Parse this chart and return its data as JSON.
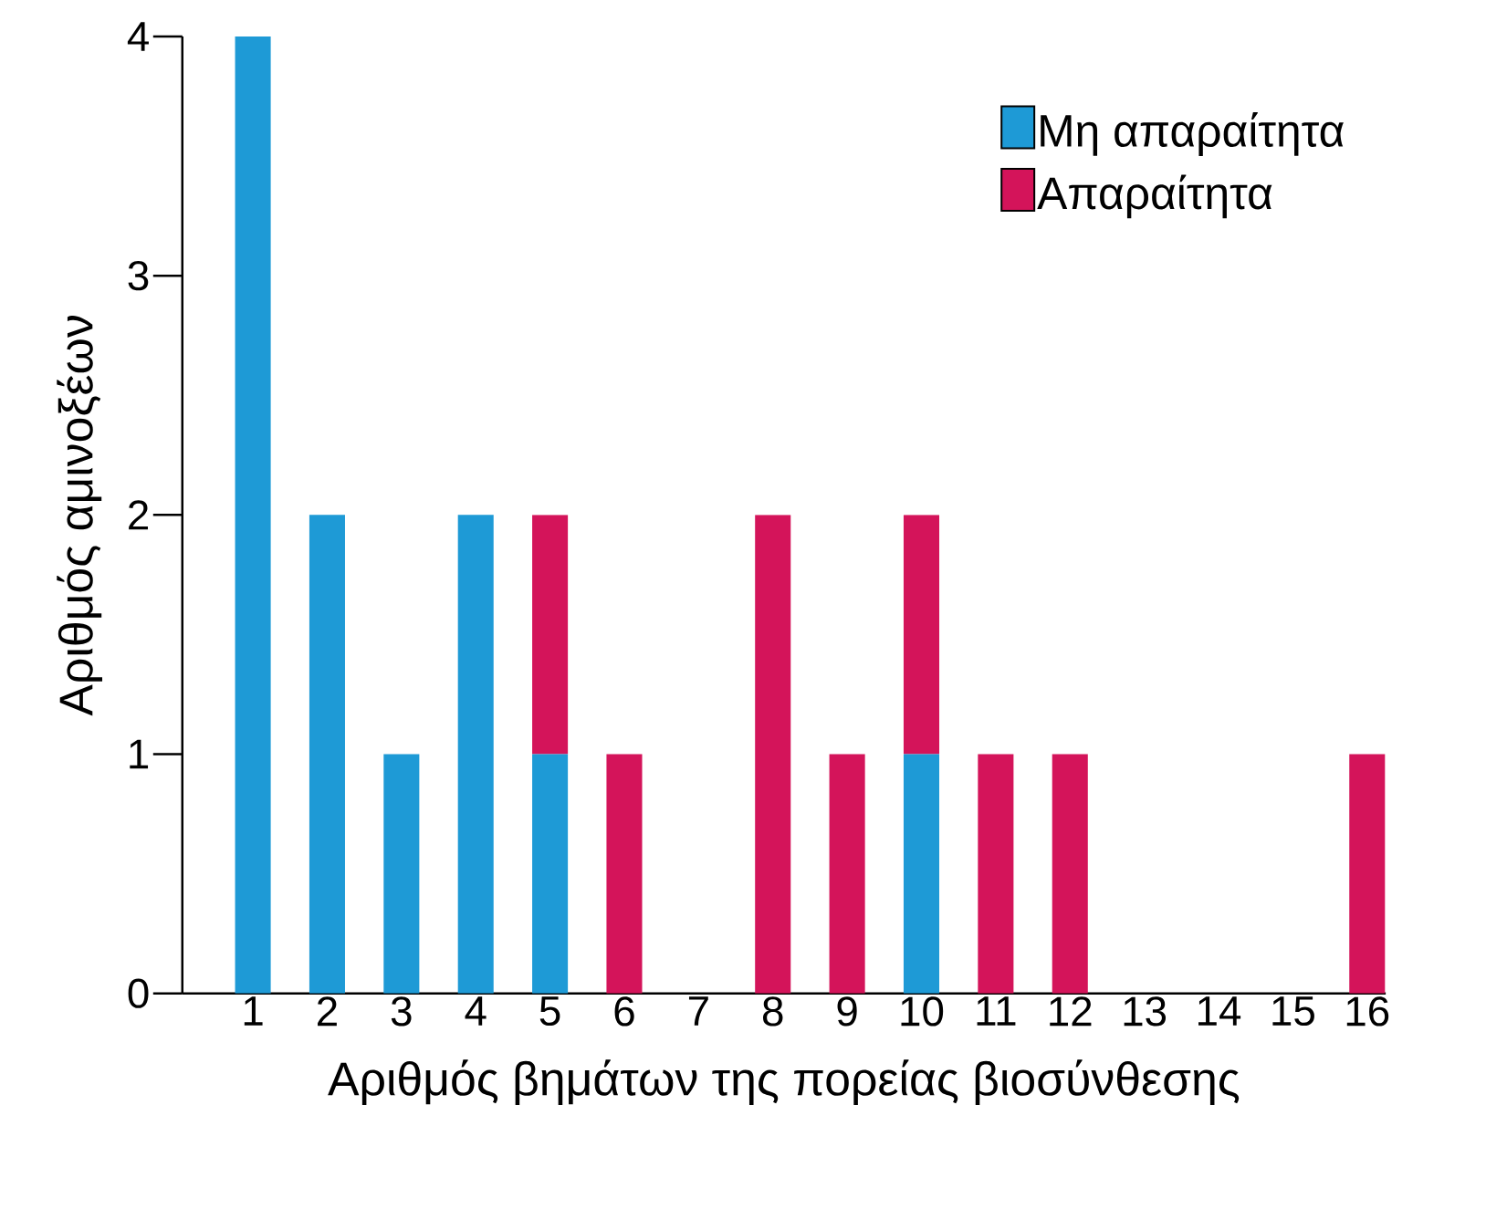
{
  "chart_data": {
    "type": "bar",
    "stacked": true,
    "xlabel": "Αριθμός βημάτων της πορείας βιοσύνθεσης",
    "ylabel": "Αριθμός αμινοξέων",
    "categories": [
      "1",
      "2",
      "3",
      "4",
      "5",
      "6",
      "7",
      "8",
      "9",
      "10",
      "11",
      "12",
      "13",
      "14",
      "15",
      "16"
    ],
    "series": [
      {
        "name": "Μη απαραίτητα",
        "color": "#1e9ad6",
        "values": [
          4,
          2,
          1,
          2,
          1,
          0,
          0,
          0,
          0,
          1,
          0,
          0,
          0,
          0,
          0,
          0
        ]
      },
      {
        "name": "Απαραίτητα",
        "color": "#d4145a",
        "values": [
          0,
          0,
          0,
          0,
          1,
          1,
          0,
          2,
          1,
          1,
          1,
          1,
          0,
          0,
          0,
          1
        ]
      }
    ],
    "ylim": [
      0,
      4
    ],
    "yticks": [
      0,
      1,
      2,
      3,
      4
    ],
    "legend": "top right",
    "grid": false
  }
}
